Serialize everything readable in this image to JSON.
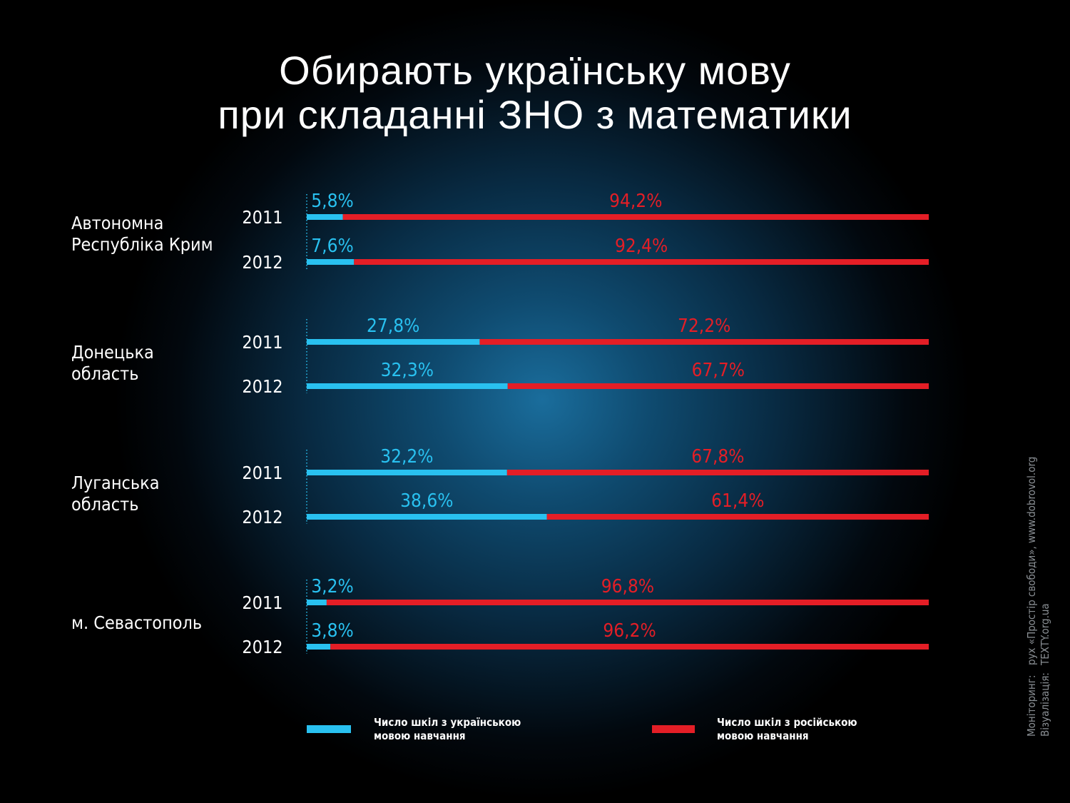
{
  "title_line1": "Обирають українську мову",
  "title_line2": "при складанні ЗНО з математики",
  "colors": {
    "ukrainian": "#29c1f0",
    "russian": "#e41e26",
    "text": "#ffffff",
    "muted": "#8a8f94"
  },
  "legend": {
    "ukrainian": "Число шкіл з українською\nмовою навчання",
    "russian": "Число шкіл з російською\nмовою навчання"
  },
  "credits": {
    "monitoring_key": "Моніторинг:",
    "monitoring_val": "рух «Простір свободи», www.dobrovol.org",
    "visual_key": "Візуалізація:",
    "visual_val": "TEXTY.org.ua"
  },
  "chart_data": {
    "type": "bar",
    "stacked": true,
    "orientation": "horizontal",
    "unit": "%",
    "series_keys": [
      "ukrainian",
      "russian"
    ],
    "groups": [
      {
        "region": "Автономна\nРеспубліка Крим",
        "rows": [
          {
            "year": "2011",
            "ukrainian": 5.8,
            "russian": 94.2,
            "ukr_label": "5,8%",
            "rus_label": "94,2%"
          },
          {
            "year": "2012",
            "ukrainian": 7.6,
            "russian": 92.4,
            "ukr_label": "7,6%",
            "rus_label": "92,4%"
          }
        ]
      },
      {
        "region": "Донецька\nобласть",
        "rows": [
          {
            "year": "2011",
            "ukrainian": 27.8,
            "russian": 72.2,
            "ukr_label": "27,8%",
            "rus_label": "72,2%"
          },
          {
            "year": "2012",
            "ukrainian": 32.3,
            "russian": 67.7,
            "ukr_label": "32,3%",
            "rus_label": "67,7%"
          }
        ]
      },
      {
        "region": "Луганська\nобласть",
        "rows": [
          {
            "year": "2011",
            "ukrainian": 32.2,
            "russian": 67.8,
            "ukr_label": "32,2%",
            "rus_label": "67,8%"
          },
          {
            "year": "2012",
            "ukrainian": 38.6,
            "russian": 61.4,
            "ukr_label": "38,6%",
            "rus_label": "61,4%"
          }
        ]
      },
      {
        "region": "м. Севастополь",
        "rows": [
          {
            "year": "2011",
            "ukrainian": 3.2,
            "russian": 96.8,
            "ukr_label": "3,2%",
            "rus_label": "96,8%"
          },
          {
            "year": "2012",
            "ukrainian": 3.8,
            "russian": 96.2,
            "ukr_label": "3,8%",
            "rus_label": "96,2%"
          }
        ]
      }
    ]
  }
}
